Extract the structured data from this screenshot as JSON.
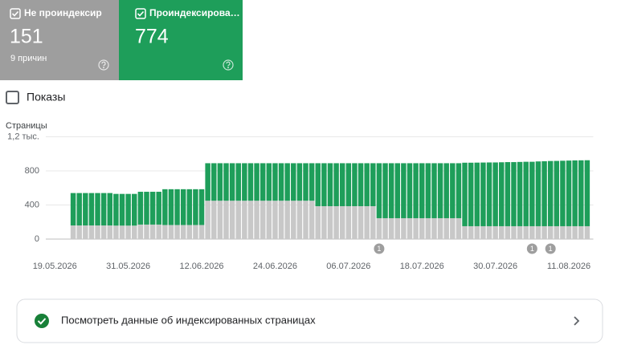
{
  "summary": {
    "cards": [
      {
        "value": 151,
        "caption": "9 причин"
      },
      {
        "value": 774
      }
    ],
    "impressions_label": "Показы",
    "link_text": "Посмотреть данные об индексированных страницах"
  },
  "chart_data": {
    "type": "bar",
    "stacked": true,
    "y_label": "Страницы",
    "x": [
      "22.05.2026",
      "23.05.2026",
      "24.05.2026",
      "25.05.2026",
      "26.05.2026",
      "27.05.2026",
      "28.05.2026",
      "29.05.2026",
      "30.05.2026",
      "31.05.2026",
      "01.06.2026",
      "02.06.2026",
      "03.06.2026",
      "04.06.2026",
      "05.06.2026",
      "06.06.2026",
      "07.06.2026",
      "08.06.2026",
      "09.06.2026",
      "10.06.2026",
      "11.06.2026",
      "12.06.2026",
      "13.06.2026",
      "14.06.2026",
      "15.06.2026",
      "16.06.2026",
      "17.06.2026",
      "18.06.2026",
      "19.06.2026",
      "20.06.2026",
      "21.06.2026",
      "22.06.2026",
      "23.06.2026",
      "24.06.2026",
      "25.06.2026",
      "26.06.2026",
      "27.06.2026",
      "28.06.2026",
      "29.06.2026",
      "30.06.2026",
      "01.07.2026",
      "02.07.2026",
      "03.07.2026",
      "04.07.2026",
      "05.07.2026",
      "06.07.2026",
      "07.07.2026",
      "08.07.2026",
      "09.07.2026",
      "10.07.2026",
      "11.07.2026",
      "12.07.2026",
      "13.07.2026",
      "14.07.2026",
      "15.07.2026",
      "16.07.2026",
      "17.07.2026",
      "18.07.2026",
      "19.07.2026",
      "20.07.2026",
      "21.07.2026",
      "22.07.2026",
      "23.07.2026",
      "24.07.2026",
      "25.07.2026",
      "26.07.2026",
      "27.07.2026",
      "28.07.2026",
      "29.07.2026",
      "30.07.2026",
      "31.07.2026",
      "01.08.2026",
      "02.08.2026",
      "03.08.2026",
      "04.08.2026",
      "05.08.2026",
      "06.08.2026",
      "07.08.2026",
      "08.08.2026",
      "09.08.2026",
      "10.08.2026",
      "11.08.2026",
      "12.08.2026",
      "13.08.2026",
      "14.08.2026"
    ],
    "series": [
      {
        "name": "Не проиндексир",
        "color": "#c8c8c8",
        "card_color": "#9e9e9e",
        "values": [
          160,
          160,
          160,
          160,
          160,
          160,
          160,
          158,
          158,
          158,
          158,
          170,
          170,
          170,
          170,
          165,
          165,
          165,
          165,
          165,
          165,
          165,
          450,
          450,
          450,
          450,
          450,
          450,
          450,
          450,
          450,
          450,
          450,
          450,
          450,
          450,
          450,
          450,
          450,
          450,
          386,
          386,
          386,
          386,
          386,
          386,
          386,
          386,
          386,
          386,
          245,
          245,
          245,
          245,
          245,
          245,
          245,
          245,
          245,
          245,
          245,
          245,
          245,
          245,
          151,
          151,
          151,
          151,
          151,
          151,
          151,
          151,
          151,
          151,
          151,
          151,
          151,
          151,
          151,
          151,
          151,
          151,
          151,
          151,
          151
        ]
      },
      {
        "name": "Проиндексирова…",
        "color": "#1e9e5a",
        "card_color": "#1e9e5a",
        "values": [
          380,
          380,
          380,
          380,
          380,
          380,
          380,
          372,
          372,
          372,
          372,
          385,
          385,
          385,
          385,
          420,
          420,
          420,
          420,
          420,
          420,
          420,
          440,
          440,
          440,
          440,
          440,
          440,
          440,
          440,
          440,
          440,
          440,
          440,
          440,
          440,
          440,
          440,
          440,
          440,
          504,
          504,
          504,
          504,
          504,
          504,
          504,
          504,
          504,
          504,
          645,
          645,
          645,
          645,
          645,
          645,
          645,
          645,
          645,
          645,
          645,
          645,
          645,
          645,
          745,
          745,
          746,
          747,
          748,
          748,
          750,
          752,
          752,
          754,
          756,
          756,
          760,
          762,
          765,
          766,
          768,
          770,
          772,
          773,
          774
        ]
      }
    ],
    "xlim": [
      "17.05.2026",
      "15.08.2026"
    ],
    "xticks": [
      "19.05.2026",
      "31.05.2026",
      "12.06.2026",
      "24.06.2026",
      "06.07.2026",
      "18.07.2026",
      "30.07.2026",
      "11.08.2026"
    ],
    "ylim": [
      0,
      1200
    ],
    "yticks": [
      0,
      400,
      800,
      {
        "value": 1200,
        "label": "1,2 тыс."
      }
    ],
    "grid": true,
    "annotations": [
      {
        "x": "11.07.2026",
        "label": "1"
      },
      {
        "x": "05.08.2026",
        "label": "1"
      },
      {
        "x": "08.08.2026",
        "label": "1"
      }
    ]
  }
}
